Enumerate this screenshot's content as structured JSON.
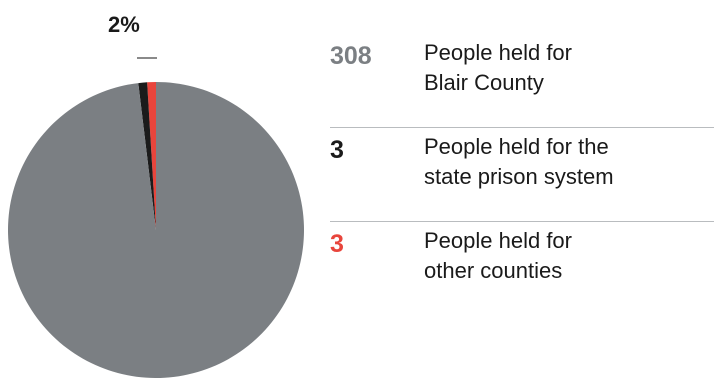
{
  "colors": {
    "blair": "#7b7f83",
    "state": "#1b1b1b",
    "other": "#e8453c"
  },
  "chart_data": {
    "type": "pie",
    "slices": [
      {
        "label": "People held for Blair County",
        "value": 308,
        "color": "#7b7f83"
      },
      {
        "label": "People held for the state prison system",
        "value": 3,
        "color": "#1b1b1b"
      },
      {
        "label": "People held for other counties",
        "value": 3,
        "color": "#e8453c"
      }
    ],
    "annotation": "2%"
  },
  "legend": [
    {
      "count": "308",
      "text": "People held for\nBlair County",
      "color": "#7b7f83"
    },
    {
      "count": "3",
      "text": "People held for the\nstate prison system",
      "color": "#1b1b1b"
    },
    {
      "count": "3",
      "text": "People held for\nother counties",
      "color": "#e8453c"
    }
  ]
}
